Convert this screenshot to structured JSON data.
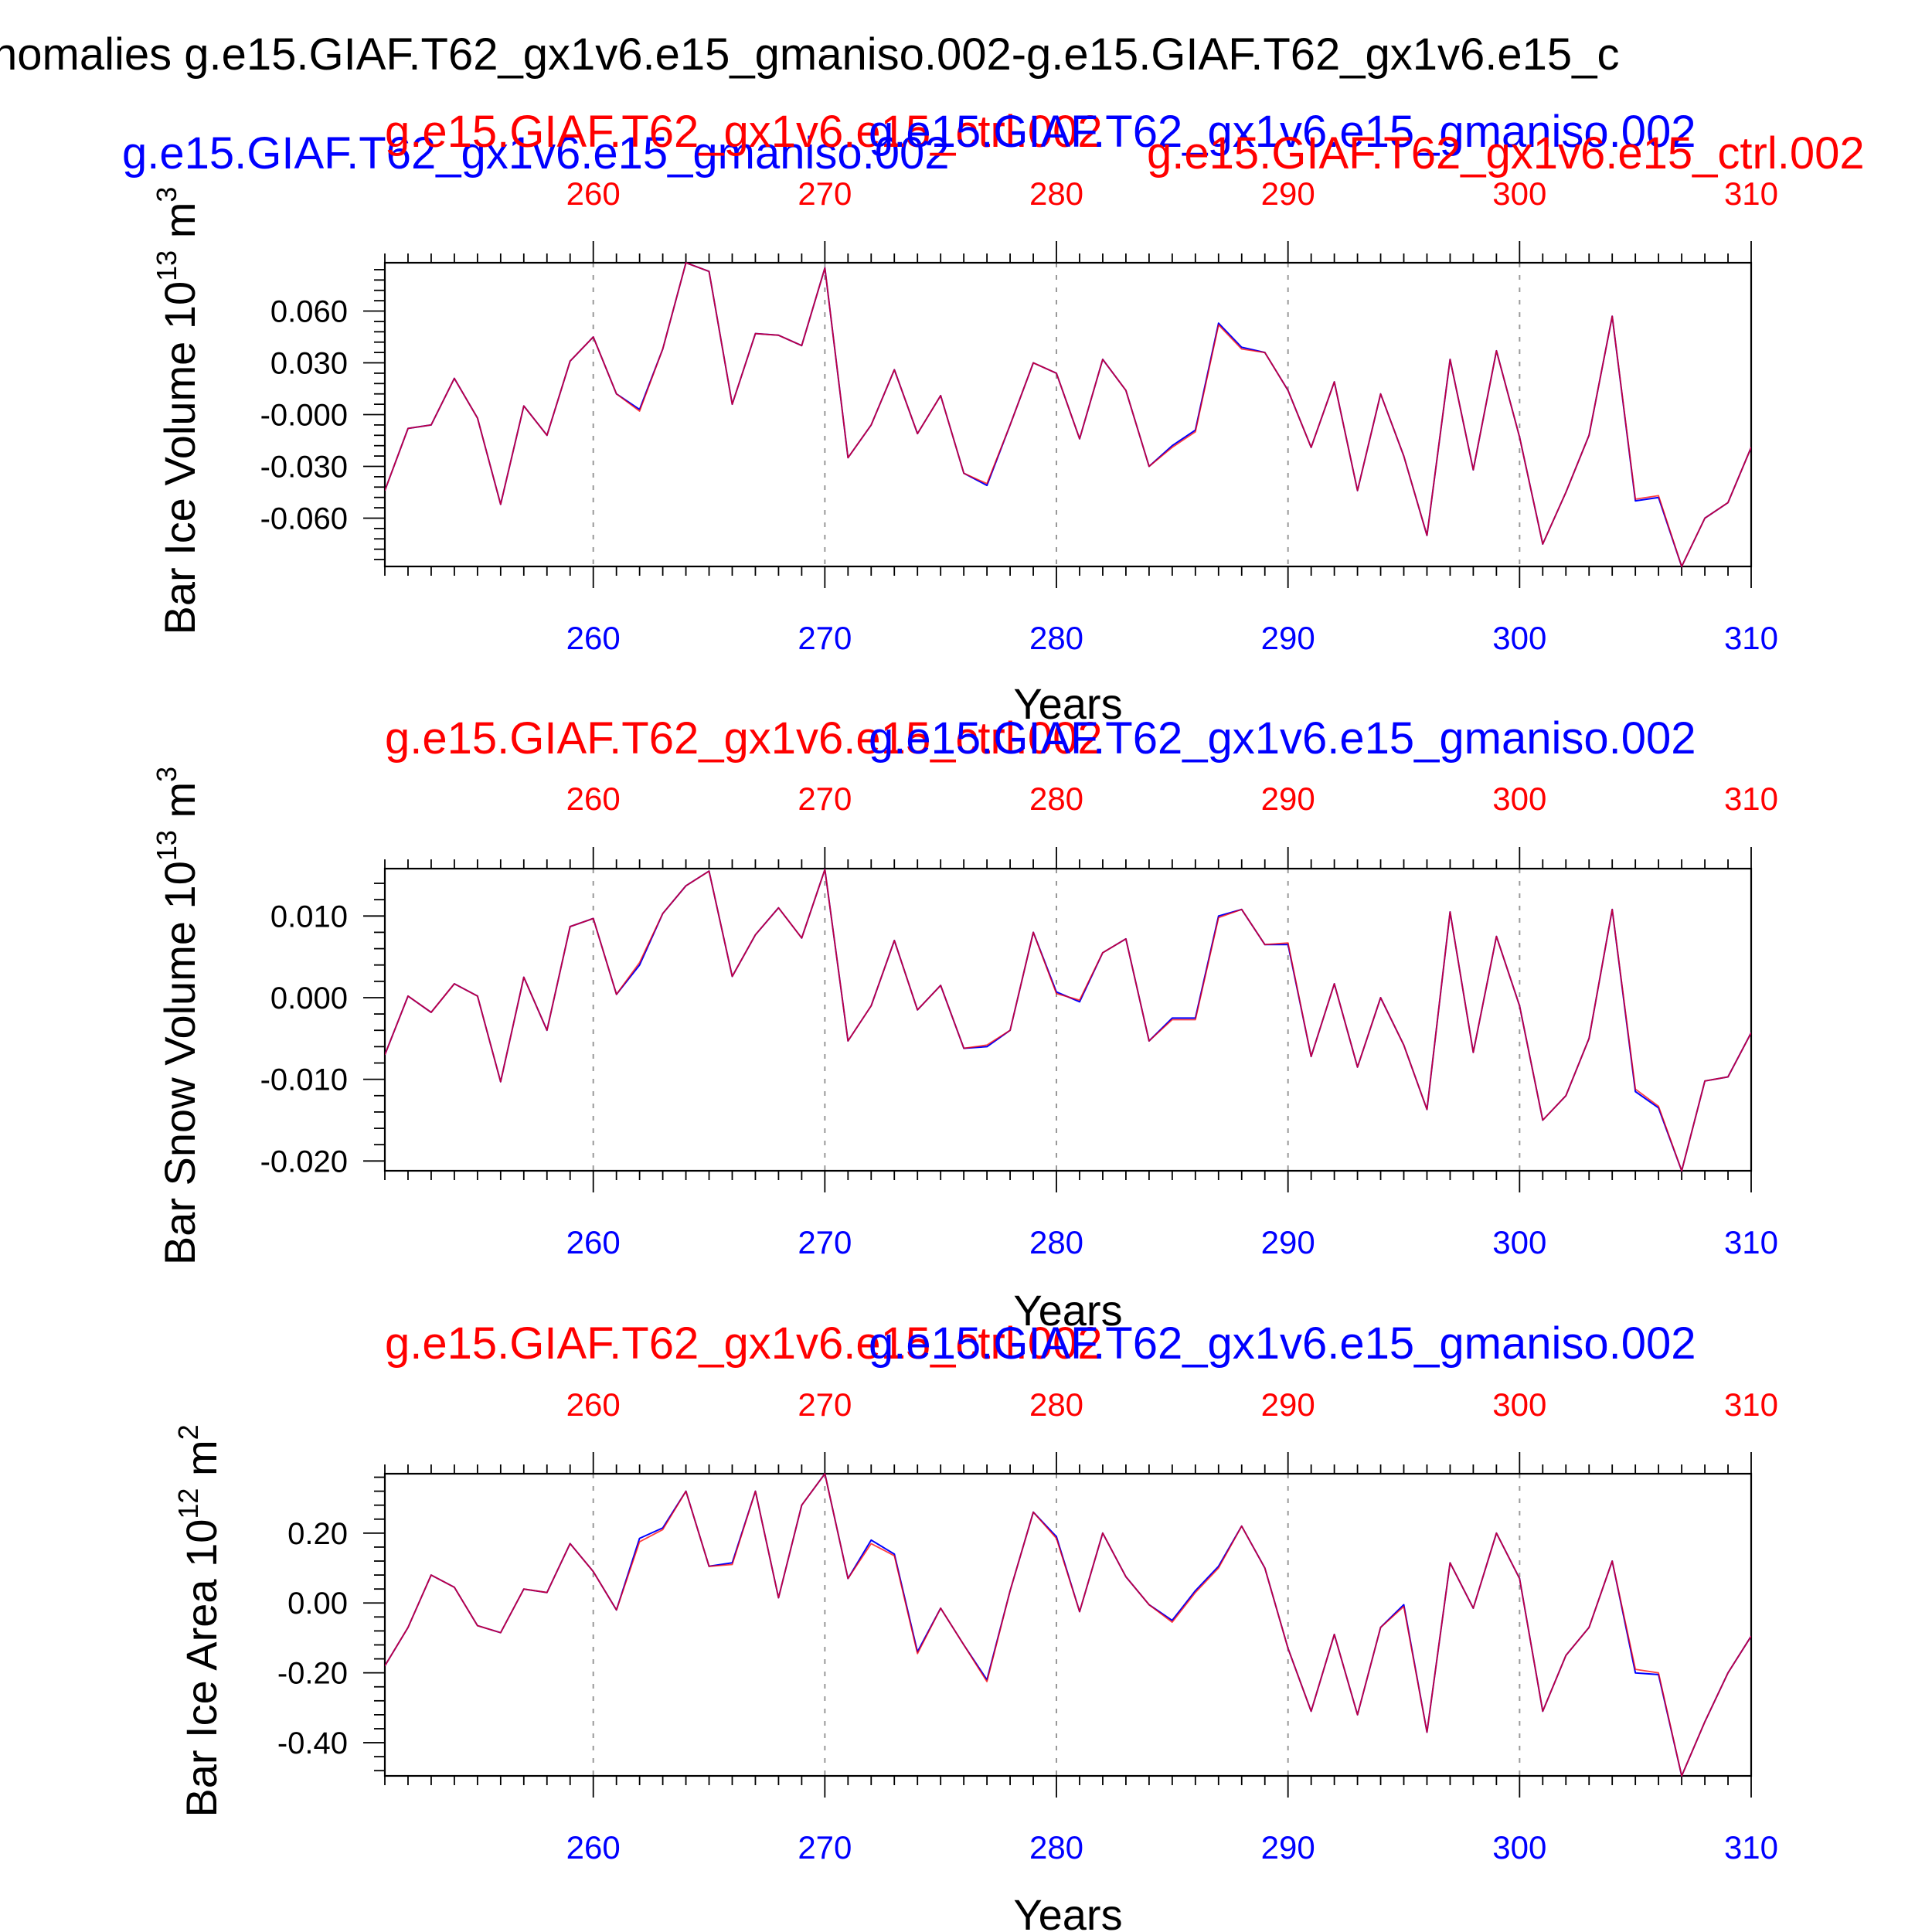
{
  "title": "nomalies g.e15.GIAF.T62_gx1v6.e15_gmaniso.002-g.e15.GIAF.T62_gx1v6.e15_c",
  "colors": {
    "blue": "#0000ff",
    "red": "#ff0000",
    "purple": "#8a0e8a",
    "axis": "#000000"
  },
  "chart_data": [
    {
      "type": "line",
      "ylabel": "Bar Ice Volume 10",
      "unit_exp": "13",
      "unit_base": " m",
      "unit_pow": "3",
      "xlabel": "Years",
      "left_label": "g.e15.GIAF.T62_gx1v6.e15_gmaniso.002",
      "red_label": "g.e15.GIAF.T62_gx1v6.e15_ctrl.002",
      "blue_label": "g.e15.GIAF.T62_gx1v6.e15_gmaniso.002",
      "right_label": "g.e15.GIAF.T62_gx1v6.e15_ctrl.002",
      "xlim": [
        251,
        310
      ],
      "ylim": [
        -0.088,
        0.088
      ],
      "yticks": [
        0.06,
        0.03,
        0.0,
        -0.03,
        -0.06
      ],
      "ytick_labels": [
        "0.060",
        "0.030",
        "-0.000",
        "-0.030",
        "-0.060"
      ],
      "xticks": [
        260,
        270,
        280,
        290,
        300,
        310
      ],
      "x": [
        251,
        252,
        253,
        254,
        255,
        256,
        257,
        258,
        259,
        260,
        261,
        262,
        263,
        264,
        265,
        266,
        267,
        268,
        269,
        270,
        271,
        272,
        273,
        274,
        275,
        276,
        277,
        278,
        279,
        280,
        281,
        282,
        283,
        284,
        285,
        286,
        287,
        288,
        289,
        290,
        291,
        292,
        293,
        294,
        295,
        296,
        297,
        298,
        299,
        300,
        301,
        302,
        303,
        304,
        305,
        306,
        307,
        308,
        309,
        310
      ],
      "series": [
        {
          "name": "g.e15.GIAF.T62_gx1v6.e15_gmaniso.002",
          "color": "blue",
          "values": [
            -0.044,
            -0.008,
            -0.006,
            0.021,
            -0.002,
            -0.052,
            0.005,
            -0.012,
            0.031,
            0.045,
            0.012,
            0.003,
            0.038,
            0.088,
            0.083,
            0.006,
            0.047,
            0.046,
            0.04,
            0.085,
            -0.025,
            -0.006,
            0.026,
            -0.011,
            0.011,
            -0.034,
            -0.041,
            -0.006,
            0.03,
            0.024,
            -0.014,
            0.032,
            0.014,
            -0.03,
            -0.018,
            -0.009,
            0.053,
            0.039,
            0.036,
            0.014,
            -0.019,
            0.019,
            -0.044,
            0.012,
            -0.024,
            -0.07,
            0.032,
            -0.032,
            0.037,
            -0.013,
            -0.075,
            -0.045,
            -0.012,
            0.057,
            -0.05,
            -0.048,
            -0.088,
            -0.06,
            -0.051,
            -0.019
          ]
        },
        {
          "name": "g.e15.GIAF.T62_gx1v6.e15_ctrl.002",
          "color": "red",
          "values": [
            -0.044,
            -0.008,
            -0.006,
            0.021,
            -0.002,
            -0.052,
            0.005,
            -0.012,
            0.031,
            0.045,
            0.012,
            0.002,
            0.038,
            0.088,
            0.083,
            0.006,
            0.047,
            0.046,
            0.04,
            0.085,
            -0.025,
            -0.006,
            0.026,
            -0.011,
            0.011,
            -0.034,
            -0.04,
            -0.006,
            0.03,
            0.024,
            -0.014,
            0.032,
            0.014,
            -0.03,
            -0.019,
            -0.01,
            0.052,
            0.038,
            0.036,
            0.014,
            -0.019,
            0.019,
            -0.044,
            0.012,
            -0.024,
            -0.07,
            0.032,
            -0.032,
            0.037,
            -0.013,
            -0.075,
            -0.045,
            -0.012,
            0.057,
            -0.049,
            -0.047,
            -0.088,
            -0.06,
            -0.051,
            -0.019
          ]
        }
      ]
    },
    {
      "type": "line",
      "ylabel": "Bar Snow Volume 10",
      "unit_exp": "13",
      "unit_base": " m",
      "unit_pow": "3",
      "xlabel": "Years",
      "red_label": "g.e15.GIAF.T62_gx1v6.e15_ctrl.002",
      "blue_label": "g.e15.GIAF.T62_gx1v6.e15_gmaniso.002",
      "xlim": [
        251,
        310
      ],
      "ylim": [
        -0.0212,
        0.0158
      ],
      "yticks": [
        0.01,
        0.0,
        -0.01,
        -0.02
      ],
      "ytick_labels": [
        "0.010",
        "0.000",
        "-0.010",
        "-0.020"
      ],
      "xticks": [
        260,
        270,
        280,
        290,
        300,
        310
      ],
      "x": [
        251,
        252,
        253,
        254,
        255,
        256,
        257,
        258,
        259,
        260,
        261,
        262,
        263,
        264,
        265,
        266,
        267,
        268,
        269,
        270,
        271,
        272,
        273,
        274,
        275,
        276,
        277,
        278,
        279,
        280,
        281,
        282,
        283,
        284,
        285,
        286,
        287,
        288,
        289,
        290,
        291,
        292,
        293,
        294,
        295,
        296,
        297,
        298,
        299,
        300,
        301,
        302,
        303,
        304,
        305,
        306,
        307,
        308,
        309,
        310
      ],
      "series": [
        {
          "name": "g.e15.GIAF.T62_gx1v6.e15_gmaniso.002",
          "color": "blue",
          "values": [
            -0.007,
            0.0002,
            -0.0018,
            0.0017,
            0.0002,
            -0.0103,
            0.0025,
            -0.004,
            0.0087,
            0.0097,
            0.0004,
            0.004,
            0.0103,
            0.0137,
            0.0155,
            0.0026,
            0.0077,
            0.011,
            0.0073,
            0.0157,
            -0.0053,
            -0.001,
            0.007,
            -0.0015,
            0.0015,
            -0.0062,
            -0.006,
            -0.004,
            0.008,
            0.0007,
            -0.0005,
            0.0055,
            0.0072,
            -0.0053,
            -0.0025,
            -0.0025,
            0.01,
            0.0108,
            0.0065,
            0.0065,
            -0.0072,
            0.0017,
            -0.0085,
            0.0,
            -0.0058,
            -0.0137,
            0.0105,
            -0.0067,
            0.0075,
            -0.001,
            -0.015,
            -0.012,
            -0.005,
            0.0108,
            -0.0115,
            -0.0135,
            -0.0212,
            -0.0102,
            -0.0097,
            -0.0043
          ]
        },
        {
          "name": "g.e15.GIAF.T62_gx1v6.e15_ctrl.002",
          "color": "red",
          "values": [
            -0.007,
            0.0002,
            -0.0018,
            0.0017,
            0.0002,
            -0.0103,
            0.0025,
            -0.004,
            0.0087,
            0.0097,
            0.0004,
            0.0043,
            0.0103,
            0.0137,
            0.0155,
            0.0026,
            0.0077,
            0.011,
            0.0073,
            0.0157,
            -0.0053,
            -0.001,
            0.007,
            -0.0015,
            0.0015,
            -0.0062,
            -0.0058,
            -0.004,
            0.008,
            0.0005,
            -0.0003,
            0.0055,
            0.0072,
            -0.0053,
            -0.0027,
            -0.0027,
            0.0098,
            0.0108,
            0.0065,
            0.0067,
            -0.0072,
            0.0017,
            -0.0085,
            0.0,
            -0.0058,
            -0.0137,
            0.0105,
            -0.0067,
            0.0075,
            -0.001,
            -0.015,
            -0.012,
            -0.005,
            0.0108,
            -0.0112,
            -0.0133,
            -0.0212,
            -0.0102,
            -0.0097,
            -0.0043
          ]
        }
      ]
    },
    {
      "type": "line",
      "ylabel": "Bar Ice Area 10",
      "unit_exp": "12",
      "unit_base": " m",
      "unit_pow": "2",
      "xlabel": "Years",
      "red_label": "g.e15.GIAF.T62_gx1v6.e15_ctrl.002",
      "blue_label": "g.e15.GIAF.T62_gx1v6.e15_gmaniso.002",
      "xlim": [
        251,
        310
      ],
      "ylim": [
        -0.495,
        0.37
      ],
      "yticks": [
        0.2,
        0.0,
        -0.2,
        -0.4
      ],
      "ytick_labels": [
        "0.20",
        "0.00",
        "-0.20",
        "-0.40"
      ],
      "xticks": [
        260,
        270,
        280,
        290,
        300,
        310
      ],
      "x": [
        251,
        252,
        253,
        254,
        255,
        256,
        257,
        258,
        259,
        260,
        261,
        262,
        263,
        264,
        265,
        266,
        267,
        268,
        269,
        270,
        271,
        272,
        273,
        274,
        275,
        276,
        277,
        278,
        279,
        280,
        281,
        282,
        283,
        284,
        285,
        286,
        287,
        288,
        289,
        290,
        291,
        292,
        293,
        294,
        295,
        296,
        297,
        298,
        299,
        300,
        301,
        302,
        303,
        304,
        305,
        306,
        307,
        308,
        309,
        310
      ],
      "series": [
        {
          "name": "g.e15.GIAF.T62_gx1v6.e15_gmaniso.002",
          "color": "blue",
          "values": [
            -0.18,
            -0.07,
            0.08,
            0.045,
            -0.065,
            -0.085,
            0.04,
            0.03,
            0.17,
            0.09,
            -0.02,
            0.185,
            0.215,
            0.32,
            0.105,
            0.115,
            0.32,
            0.015,
            0.28,
            0.37,
            0.07,
            0.18,
            0.14,
            -0.14,
            -0.015,
            -0.12,
            -0.22,
            0.035,
            0.26,
            0.19,
            -0.025,
            0.2,
            0.075,
            -0.005,
            -0.05,
            0.035,
            0.105,
            0.22,
            0.1,
            -0.13,
            -0.31,
            -0.09,
            -0.32,
            -0.07,
            -0.005,
            -0.37,
            0.115,
            -0.015,
            0.2,
            0.07,
            -0.31,
            -0.15,
            -0.07,
            0.12,
            -0.2,
            -0.205,
            -0.495,
            -0.34,
            -0.2,
            -0.095
          ]
        },
        {
          "name": "g.e15.GIAF.T62_gx1v6.e15_ctrl.002",
          "color": "red",
          "values": [
            -0.18,
            -0.07,
            0.08,
            0.045,
            -0.065,
            -0.085,
            0.04,
            0.03,
            0.17,
            0.09,
            -0.02,
            0.175,
            0.21,
            0.32,
            0.105,
            0.11,
            0.32,
            0.015,
            0.28,
            0.37,
            0.07,
            0.17,
            0.135,
            -0.145,
            -0.015,
            -0.12,
            -0.225,
            0.035,
            0.26,
            0.185,
            -0.025,
            0.2,
            0.075,
            -0.005,
            -0.055,
            0.03,
            0.1,
            0.22,
            0.1,
            -0.13,
            -0.31,
            -0.09,
            -0.32,
            -0.07,
            -0.01,
            -0.37,
            0.115,
            -0.015,
            0.2,
            0.07,
            -0.31,
            -0.15,
            -0.07,
            0.12,
            -0.19,
            -0.2,
            -0.495,
            -0.34,
            -0.2,
            -0.095
          ]
        }
      ]
    }
  ]
}
